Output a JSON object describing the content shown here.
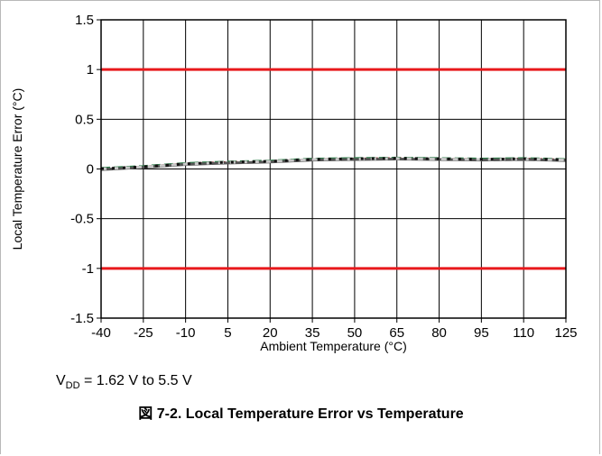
{
  "note": {
    "prefix": "V",
    "sub": "DD",
    "suffix": " = 1.62 V to 5.5 V"
  },
  "caption": "図 7-2. Local Temperature Error vs Temperature",
  "chart_data": {
    "type": "line",
    "title": "",
    "xlabel": "Ambient Temperature (°C)",
    "ylabel": "Local Temperature Error (°C)",
    "xlim": [
      -40,
      125
    ],
    "ylim": [
      -1.5,
      1.5
    ],
    "xticks": [
      -40,
      -25,
      -10,
      5,
      20,
      35,
      50,
      65,
      80,
      95,
      110,
      125
    ],
    "xtick_labels": [
      "-40",
      "-25",
      "-10",
      "5",
      "20",
      "35",
      "50",
      "65",
      "80",
      "95",
      "110",
      "125"
    ],
    "yticks": [
      1.5,
      1,
      0.5,
      0,
      -0.5,
      -1,
      -1.5
    ],
    "ytick_labels": [
      "1.5",
      "1",
      "0.5",
      "0",
      "-0.5",
      "-1",
      "-1.5"
    ],
    "grid": true,
    "limit_lines": [
      {
        "y": 1,
        "color": "#e8191c"
      },
      {
        "y": -1,
        "color": "#e8191c"
      }
    ],
    "series": [
      {
        "color": "#8b1a1a",
        "dash": "8,5",
        "x": [
          -40,
          -25,
          -10,
          5,
          20,
          35,
          50,
          65,
          80,
          95,
          110,
          125
        ],
        "y": [
          0.0,
          0.02,
          0.05,
          0.065,
          0.075,
          0.095,
          0.1,
          0.105,
          0.1,
          0.095,
          0.1,
          0.09
        ]
      },
      {
        "color": "#2e7d4a",
        "dash": "10,4",
        "x": [
          -40,
          -25,
          -10,
          5,
          20,
          35,
          50,
          65,
          80,
          95,
          110,
          125
        ],
        "y": [
          0.005,
          0.025,
          0.055,
          0.07,
          0.08,
          0.1,
          0.105,
          0.11,
          0.105,
          0.1,
          0.105,
          0.095
        ]
      },
      {
        "color": "#555555",
        "dash": "",
        "x": [
          -40,
          -25,
          -10,
          5,
          20,
          35,
          50,
          65,
          80,
          95,
          110,
          125
        ],
        "y": [
          -0.005,
          0.015,
          0.045,
          0.06,
          0.07,
          0.09,
          0.095,
          0.1,
          0.095,
          0.09,
          0.095,
          0.085
        ]
      },
      {
        "color": "#c8c8c8",
        "dash": "6,7",
        "x": [
          -40,
          -25,
          -10,
          5,
          20,
          35,
          50,
          65,
          80,
          95,
          110,
          125
        ],
        "y": [
          0.0,
          0.02,
          0.05,
          0.065,
          0.075,
          0.095,
          0.1,
          0.105,
          0.1,
          0.095,
          0.1,
          0.09
        ]
      },
      {
        "color": "#111111",
        "dash": "3,9",
        "x": [
          -40,
          -25,
          -10,
          5,
          20,
          35,
          50,
          65,
          80,
          95,
          110,
          125
        ],
        "y": [
          0.002,
          0.022,
          0.052,
          0.067,
          0.077,
          0.097,
          0.102,
          0.107,
          0.102,
          0.097,
          0.102,
          0.092
        ]
      }
    ]
  }
}
